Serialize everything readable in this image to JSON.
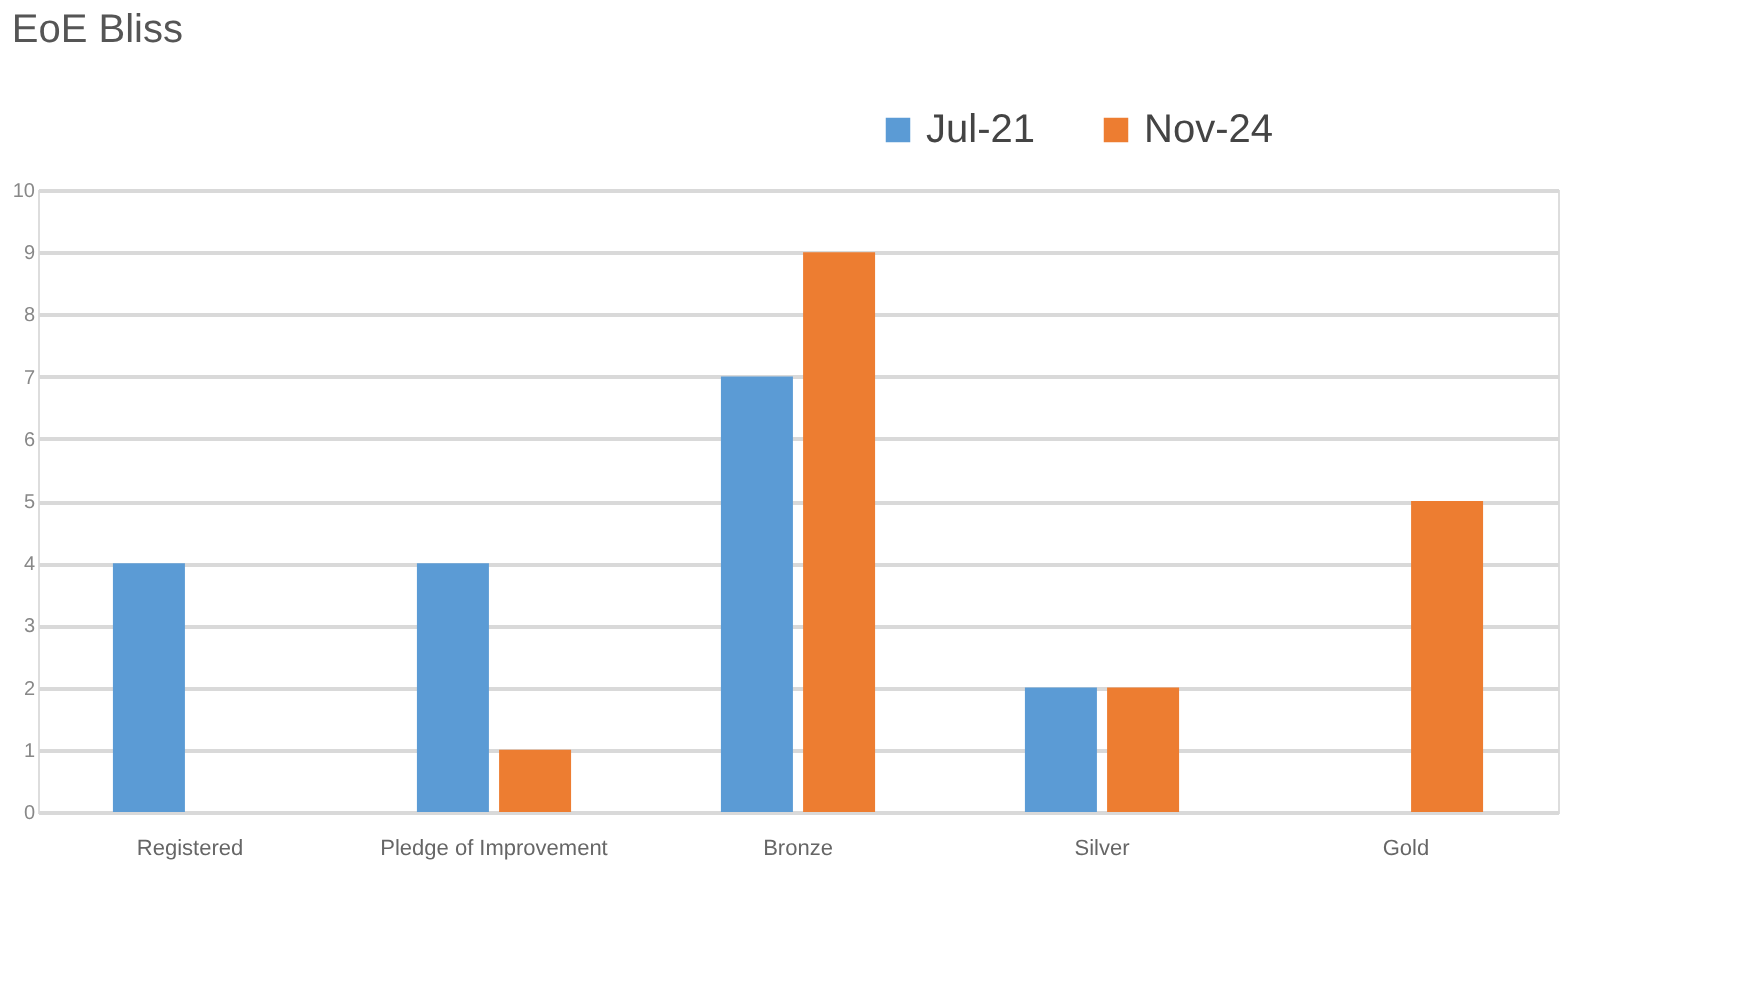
{
  "chart_data": {
    "type": "bar",
    "title": "EoE Bliss",
    "categories": [
      "Registered",
      "Pledge of Improvement",
      "Bronze",
      "Silver",
      "Gold"
    ],
    "series": [
      {
        "name": "Jul-21",
        "color": "#5b9bd5",
        "values": [
          4,
          4,
          7,
          2,
          null
        ]
      },
      {
        "name": "Nov-24",
        "color": "#ed7d31",
        "values": [
          null,
          1,
          9,
          2,
          5
        ]
      }
    ],
    "ylim": [
      0,
      10
    ],
    "yticks": [
      0,
      1,
      2,
      3,
      4,
      5,
      6,
      7,
      8,
      9,
      10
    ],
    "grid": "y",
    "legend": "top right"
  }
}
